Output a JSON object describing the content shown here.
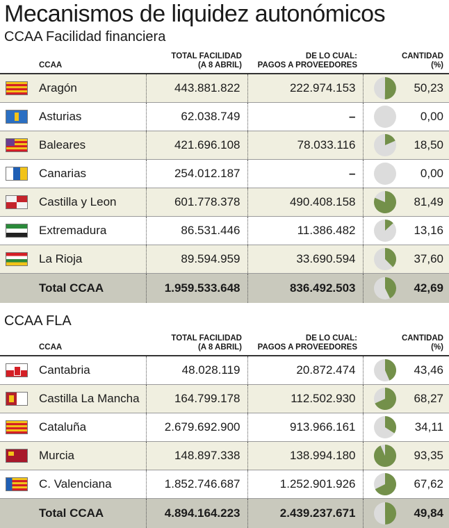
{
  "title": "Mecanismos de liquidez autonómicos",
  "colors": {
    "pie_fill": "#73904a",
    "pie_bg": "#dcdcdc",
    "row_alt": "#f0efe0",
    "total_row": "#c9c9bd"
  },
  "headers": {
    "ccaa": "CCAA",
    "total_line1": "TOTAL FACILIDAD",
    "total_line2": "(A 8 ABRIL)",
    "pagos_line1": "DE LO CUAL:",
    "pagos_line2": "PAGOS A PROVEEDORES",
    "cantidad_line1": "CANTIDAD",
    "cantidad_line2": "(%)"
  },
  "section1": {
    "subtitle": "CCAA Facilidad financiera",
    "rows": [
      {
        "name": "Aragón",
        "flag": "aragon-flag-icon",
        "total": "443.881.822",
        "pagos": "222.974.153",
        "pct": "50,23",
        "pct_value": 50.23
      },
      {
        "name": "Asturias",
        "flag": "asturias-flag-icon",
        "total": "62.038.749",
        "pagos": "–",
        "pct": "0,00",
        "pct_value": 0
      },
      {
        "name": "Baleares",
        "flag": "baleares-flag-icon",
        "total": "421.696.108",
        "pagos": "78.033.116",
        "pct": "18,50",
        "pct_value": 18.5
      },
      {
        "name": "Canarias",
        "flag": "canarias-flag-icon",
        "total": "254.012.187",
        "pagos": "–",
        "pct": "0,00",
        "pct_value": 0
      },
      {
        "name": "Castilla y Leon",
        "flag": "castilla-leon-flag-icon",
        "total": "601.778.378",
        "pagos": "490.408.158",
        "pct": "81,49",
        "pct_value": 81.49
      },
      {
        "name": "Extremadura",
        "flag": "extremadura-flag-icon",
        "total": "86.531.446",
        "pagos": "11.386.482",
        "pct": "13,16",
        "pct_value": 13.16
      },
      {
        "name": "La Rioja",
        "flag": "la-rioja-flag-icon",
        "total": "89.594.959",
        "pagos": "33.690.594",
        "pct": "37,60",
        "pct_value": 37.6
      }
    ],
    "total": {
      "name": "Total CCAA",
      "total": "1.959.533.648",
      "pagos": "836.492.503",
      "pct": "42,69",
      "pct_value": 42.69
    }
  },
  "section2": {
    "subtitle": "CCAA FLA",
    "rows": [
      {
        "name": "Cantabria",
        "flag": "cantabria-flag-icon",
        "total": "48.028.119",
        "pagos": "20.872.474",
        "pct": "43,46",
        "pct_value": 43.46
      },
      {
        "name": "Castilla La Mancha",
        "flag": "castilla-la-mancha-flag-icon",
        "total": "164.799.178",
        "pagos": "112.502.930",
        "pct": "68,27",
        "pct_value": 68.27
      },
      {
        "name": "Cataluña",
        "flag": "cataluna-flag-icon",
        "total": "2.679.692.900",
        "pagos": "913.966.161",
        "pct": "34,11",
        "pct_value": 34.11
      },
      {
        "name": "Murcia",
        "flag": "murcia-flag-icon",
        "total": "148.897.338",
        "pagos": "138.994.180",
        "pct": "93,35",
        "pct_value": 93.35
      },
      {
        "name": "C. Valenciana",
        "flag": "valencia-flag-icon",
        "total": "1.852.746.687",
        "pagos": "1.252.901.926",
        "pct": "67,62",
        "pct_value": 67.62
      }
    ],
    "total": {
      "name": "Total CCAA",
      "total": "4.894.164.223",
      "pagos": "2.439.237.671",
      "pct": "49,84",
      "pct_value": 49.84
    }
  }
}
